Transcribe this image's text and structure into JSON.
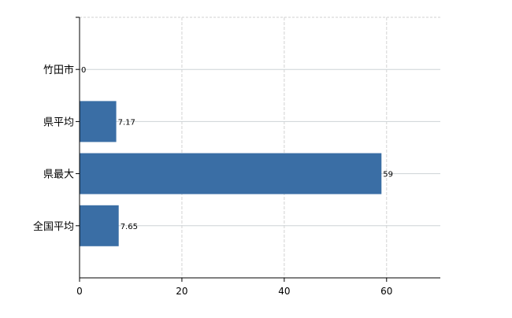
{
  "chart_data": {
    "type": "bar",
    "orientation": "horizontal",
    "categories": [
      "竹田市",
      "県平均",
      "県最大",
      "全国平均"
    ],
    "values": [
      0,
      7.17,
      59,
      7.65
    ],
    "data_labels": [
      "0",
      "7.17",
      "59",
      "7.65"
    ],
    "title": "",
    "xlabel": "",
    "ylabel": "",
    "xlim": [
      0,
      70.5
    ],
    "x_ticks": [
      0,
      20,
      40,
      60
    ],
    "x_tick_labels": [
      "0",
      "20",
      "40",
      "60"
    ],
    "grid": true,
    "bar_color": "#3a6ea5"
  }
}
